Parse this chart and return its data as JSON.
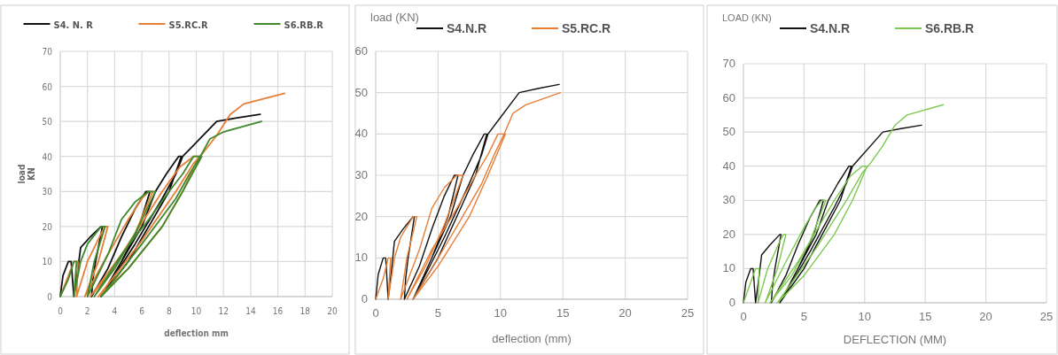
{
  "chart_data": [
    {
      "type": "line",
      "xlabel": "deflection mm",
      "ylabel": "load\nKN",
      "xlim": [
        0,
        20
      ],
      "xticks": [
        0,
        2,
        4,
        6,
        8,
        10,
        12,
        14,
        16,
        18,
        20
      ],
      "ylim": [
        0,
        70
      ],
      "yticks": [
        0,
        10,
        20,
        30,
        40,
        50,
        60,
        70
      ],
      "grid": true,
      "legend": "top",
      "series": [
        {
          "name": "S4. N. R",
          "color": "#111111",
          "x": [
            0,
            0.2,
            0.6,
            0.8,
            1.0,
            1.3,
            1.5,
            2.2,
            3.0,
            3.1,
            2.6,
            2.4,
            2.3,
            3.5,
            4.5,
            5.5,
            6.3,
            6.6,
            5.8,
            4.5,
            3.0,
            4.5,
            6.0,
            7.0,
            7.8,
            8.7,
            8.9,
            8.0,
            6.5,
            5.0,
            3.0,
            5.5,
            7.5,
            8.5,
            9.0,
            9.5,
            11.5,
            13,
            14.7
          ],
          "values": [
            0,
            6,
            10,
            10,
            0,
            8,
            14,
            17,
            20,
            20,
            10,
            5,
            0,
            8,
            17,
            25,
            30,
            30,
            20,
            10,
            0,
            10,
            20,
            30,
            35,
            40,
            40,
            30,
            20,
            10,
            0,
            15,
            28,
            35,
            40,
            42,
            50,
            51,
            52
          ]
        },
        {
          "name": "S5.RC.R",
          "color": "#e87d35",
          "x": [
            0,
            0.5,
            1.0,
            1.3,
            1.2,
            2.0,
            3.0,
            3.3,
            3.5,
            2.8,
            1.8,
            3.5,
            5.0,
            6.0,
            6.5,
            6.8,
            5.5,
            4.0,
            2.2,
            4.5,
            6.5,
            7.5,
            8.8,
            9.8,
            10.2,
            9.0,
            7.5,
            5.0,
            2.8,
            6.0,
            8.5,
            9.8,
            10.5,
            11.5,
            12.5,
            13.5,
            16.5
          ],
          "values": [
            0,
            5,
            10,
            10,
            0,
            10,
            18,
            20,
            20,
            10,
            0,
            12,
            22,
            28,
            30,
            30,
            18,
            8,
            0,
            12,
            24,
            30,
            37,
            40,
            40,
            30,
            20,
            8,
            0,
            16,
            30,
            38,
            41,
            46,
            52,
            55,
            58
          ]
        },
        {
          "name": "S6.RB.R",
          "color": "#3f8a2c",
          "x": [
            0,
            0.6,
            1.0,
            1.2,
            1.0,
            1.5,
            2.0,
            3.0,
            3.3,
            2.5,
            2.0,
            3.5,
            4.5,
            5.5,
            6.5,
            7.0,
            5.5,
            4.0,
            2.5,
            4.5,
            6.5,
            8.0,
            9.0,
            9.8,
            10.4,
            9.0,
            7.5,
            5.0,
            3.0,
            6.0,
            8.5,
            9.5,
            10.3,
            11.0,
            12,
            14.8
          ],
          "values": [
            0,
            5,
            10,
            10,
            0,
            10,
            15,
            20,
            20,
            10,
            0,
            12,
            22,
            27,
            30,
            30,
            18,
            8,
            0,
            12,
            22,
            30,
            35,
            40,
            40,
            30,
            20,
            8,
            0,
            15,
            28,
            35,
            40,
            45,
            47,
            50
          ]
        }
      ]
    },
    {
      "type": "line",
      "xlabel": "deflection (mm)",
      "ylabel": "load (KN)",
      "xlim": [
        0,
        25
      ],
      "xticks": [
        0,
        5,
        10,
        15,
        20,
        25
      ],
      "ylim": [
        0,
        60
      ],
      "yticks": [
        0,
        10,
        20,
        30,
        40,
        50,
        60
      ],
      "grid": true,
      "legend": "top",
      "series": [
        {
          "name": "S4.N.R",
          "color": "#111111",
          "x": [
            0,
            0.2,
            0.6,
            0.8,
            1.0,
            1.3,
            1.5,
            2.2,
            3.0,
            3.1,
            2.6,
            2.4,
            2.3,
            3.5,
            4.5,
            5.5,
            6.3,
            6.6,
            5.8,
            4.5,
            3.0,
            4.5,
            6.0,
            7.0,
            7.8,
            8.7,
            8.9,
            8.0,
            6.5,
            5.0,
            3.0,
            5.5,
            7.5,
            8.5,
            9.0,
            9.5,
            11.5,
            13,
            14.7
          ],
          "values": [
            0,
            6,
            10,
            10,
            0,
            8,
            14,
            17,
            20,
            20,
            10,
            5,
            0,
            8,
            17,
            25,
            30,
            30,
            20,
            10,
            0,
            10,
            20,
            30,
            35,
            40,
            40,
            30,
            20,
            10,
            0,
            15,
            28,
            35,
            40,
            42,
            50,
            51,
            52
          ]
        },
        {
          "name": "S5.RC.R",
          "color": "#e87d35",
          "x": [
            0,
            0.6,
            1.0,
            1.2,
            1.0,
            1.5,
            2.0,
            3.0,
            3.3,
            2.5,
            2.0,
            3.5,
            4.5,
            5.5,
            6.5,
            7.0,
            5.5,
            4.0,
            2.5,
            4.5,
            6.5,
            8.0,
            9.0,
            9.8,
            10.4,
            9.0,
            7.5,
            5.0,
            3.0,
            6.0,
            8.5,
            9.5,
            10.3,
            11.0,
            12,
            14.8
          ],
          "values": [
            0,
            5,
            10,
            10,
            0,
            10,
            15,
            20,
            20,
            10,
            0,
            12,
            22,
            27,
            30,
            30,
            18,
            8,
            0,
            12,
            22,
            30,
            35,
            40,
            40,
            30,
            20,
            8,
            0,
            15,
            28,
            35,
            40,
            45,
            47,
            50
          ]
        }
      ]
    },
    {
      "type": "line",
      "xlabel": "DEFLECTION (MM)",
      "ylabel": "LOAD (KN)",
      "xlim": [
        0,
        25
      ],
      "xticks": [
        0,
        5,
        10,
        15,
        20,
        25
      ],
      "ylim": [
        0,
        70
      ],
      "yticks": [
        0,
        10,
        20,
        30,
        40,
        50,
        60,
        70
      ],
      "grid": true,
      "legend": "top",
      "series": [
        {
          "name": "S4.N.R",
          "color": "#111111",
          "x": [
            0,
            0.2,
            0.6,
            0.8,
            1.0,
            1.3,
            1.5,
            2.2,
            3.0,
            3.1,
            2.6,
            2.4,
            2.3,
            3.5,
            4.5,
            5.5,
            6.3,
            6.6,
            5.8,
            4.5,
            3.0,
            4.5,
            6.0,
            7.0,
            7.8,
            8.7,
            8.9,
            8.0,
            6.5,
            5.0,
            3.0,
            5.5,
            7.5,
            8.5,
            9.0,
            9.5,
            11.5,
            13,
            14.7
          ],
          "values": [
            0,
            6,
            10,
            10,
            0,
            8,
            14,
            17,
            20,
            20,
            10,
            5,
            0,
            8,
            17,
            25,
            30,
            30,
            20,
            10,
            0,
            10,
            20,
            30,
            35,
            40,
            40,
            30,
            20,
            10,
            0,
            15,
            28,
            35,
            40,
            42,
            50,
            51,
            52
          ]
        },
        {
          "name": "S6.RB.R",
          "color": "#7ec850",
          "x": [
            0,
            0.5,
            1.0,
            1.3,
            1.2,
            2.0,
            3.0,
            3.3,
            3.5,
            2.8,
            1.8,
            3.5,
            5.0,
            6.0,
            6.5,
            6.8,
            5.5,
            4.0,
            2.2,
            4.5,
            6.5,
            7.5,
            8.8,
            9.8,
            10.2,
            9.0,
            7.5,
            5.0,
            2.8,
            6.0,
            8.5,
            9.8,
            10.5,
            11.5,
            12.5,
            13.5,
            16.5
          ],
          "values": [
            0,
            5,
            10,
            10,
            0,
            10,
            18,
            20,
            20,
            10,
            0,
            12,
            22,
            28,
            30,
            30,
            18,
            8,
            0,
            12,
            24,
            30,
            37,
            40,
            40,
            30,
            20,
            8,
            0,
            16,
            30,
            38,
            41,
            46,
            52,
            55,
            58
          ]
        }
      ]
    }
  ]
}
